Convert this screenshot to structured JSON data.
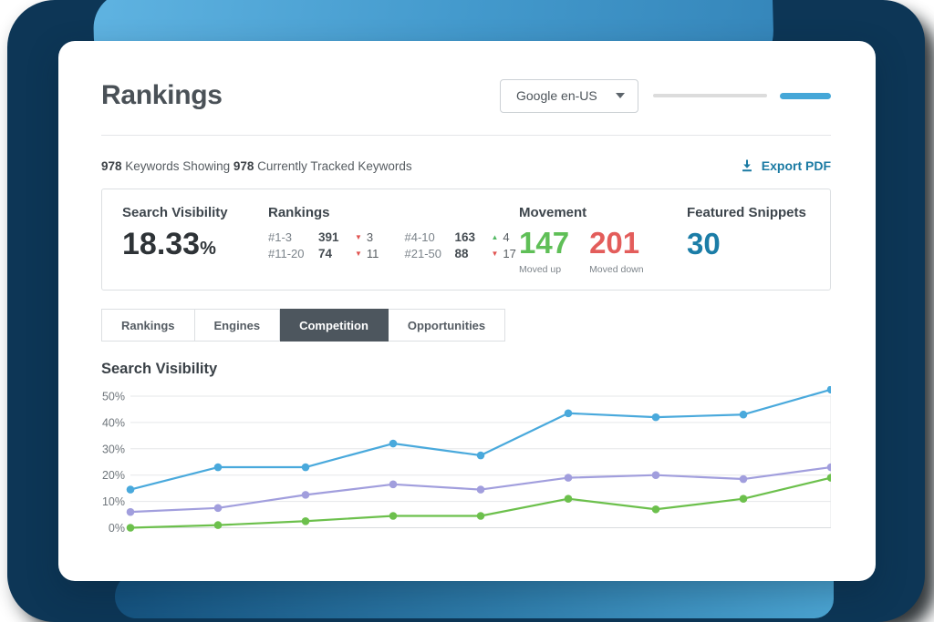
{
  "header": {
    "title": "Rankings",
    "engine_select": {
      "value": "Google en-US"
    },
    "export": {
      "label": "Export PDF"
    }
  },
  "summary": {
    "showing_count": "978",
    "showing_text": " Keywords Showing ",
    "tracked_count": "978",
    "tracked_text": " Currently Tracked Keywords"
  },
  "stats": {
    "search_visibility": {
      "label": "Search Visibility",
      "value": "18.33",
      "unit": "%"
    },
    "rankings": {
      "label": "Rankings",
      "cells": [
        {
          "range": "#1-3",
          "count": "391",
          "direction": "down",
          "change": "3"
        },
        {
          "range": "#4-10",
          "count": "163",
          "direction": "up",
          "change": "4"
        },
        {
          "range": "#11-20",
          "count": "74",
          "direction": "down",
          "change": "11"
        },
        {
          "range": "#21-50",
          "count": "88",
          "direction": "down",
          "change": "17"
        }
      ]
    },
    "movement": {
      "label": "Movement",
      "up": {
        "value": "147",
        "caption": "Moved up"
      },
      "down": {
        "value": "201",
        "caption": "Moved down"
      }
    },
    "featured_snippets": {
      "label": "Featured Snippets",
      "value": "30"
    }
  },
  "tabs": [
    {
      "label": "Rankings",
      "active": false
    },
    {
      "label": "Engines",
      "active": false
    },
    {
      "label": "Competition",
      "active": true
    },
    {
      "label": "Opportunities",
      "active": false
    }
  ],
  "chart_data": {
    "type": "line",
    "title": "Search Visibility",
    "xlabel": "",
    "ylabel": "",
    "x": [
      1,
      2,
      3,
      4,
      5,
      6,
      7,
      8,
      9
    ],
    "ylim": [
      0,
      55
    ],
    "yticks": [
      0,
      10,
      20,
      30,
      40,
      50
    ],
    "ytick_labels": [
      "0%",
      "10%",
      "20%",
      "30%",
      "40%",
      "50%"
    ],
    "grid": "horizontal",
    "legend": "none",
    "series": [
      {
        "name": "blue",
        "color": "#49a9dc",
        "values": [
          14.5,
          23,
          23,
          32,
          27.5,
          43.5,
          42,
          43,
          52.5
        ]
      },
      {
        "name": "purple",
        "color": "#a19edd",
        "values": [
          6,
          7.5,
          12.5,
          16.5,
          14.5,
          19,
          20,
          18.5,
          23
        ]
      },
      {
        "name": "green",
        "color": "#6cc04c",
        "values": [
          0,
          1,
          2.5,
          4.5,
          4.5,
          11,
          7,
          11,
          19
        ]
      }
    ]
  },
  "colors": {
    "accent_blue": "#45a7d8",
    "navy_background": "#0d3656",
    "positive_green": "#5fbf57",
    "negative_red": "#e35d5b",
    "featured_blue": "#1b7da7",
    "link_blue": "#1a7aa3",
    "active_tab_background": "#4d565e"
  }
}
